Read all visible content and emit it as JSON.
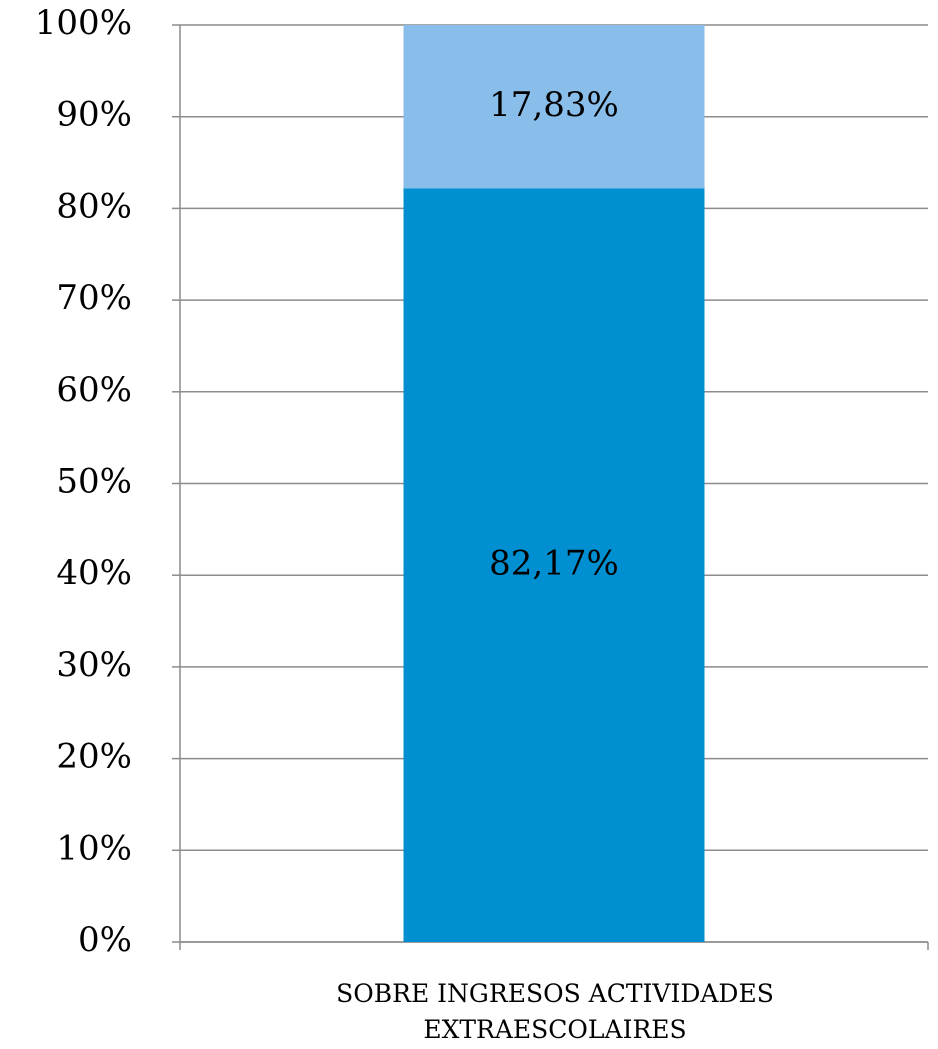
{
  "chart_data": {
    "type": "stacked_bar",
    "categories": [
      "SOBRE INGRESOS ACTIVIDADES EXTRAESCOLAIRES"
    ],
    "series": [
      {
        "color": "#008fd0",
        "values": [
          82.17
        ],
        "value_labels": [
          "82,17%"
        ]
      },
      {
        "color": "#89bdea",
        "values": [
          17.83
        ],
        "value_labels": [
          "17,83%"
        ]
      }
    ],
    "ylim": [
      0,
      100
    ],
    "yticks": [
      {
        "value": 0,
        "label": "0%"
      },
      {
        "value": 10,
        "label": "10%"
      },
      {
        "value": 20,
        "label": "20%"
      },
      {
        "value": 30,
        "label": "30%"
      },
      {
        "value": 40,
        "label": "40%"
      },
      {
        "value": 50,
        "label": "50%"
      },
      {
        "value": 60,
        "label": "60%"
      },
      {
        "value": 70,
        "label": "70%"
      },
      {
        "value": 80,
        "label": "80%"
      },
      {
        "value": 90,
        "label": "90%"
      },
      {
        "value": 100,
        "label": "100%"
      }
    ],
    "grid": true
  }
}
